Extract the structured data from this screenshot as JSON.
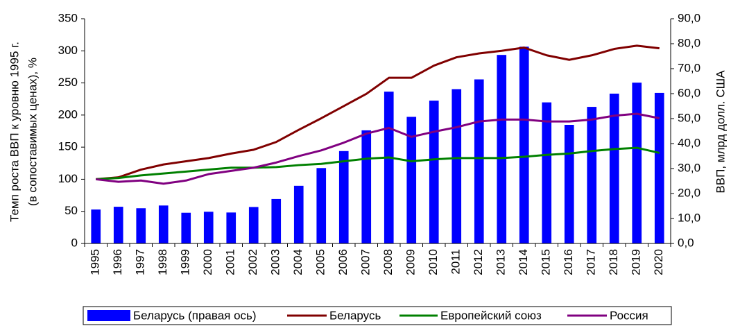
{
  "chart_data": {
    "type": "bar",
    "y_label": [
      "Темп роста ВВП к уровню 1995 г.",
      "(в сопоставимых ценах), %"
    ],
    "y2_label": "ВВП, млрд долл. США",
    "categories": [
      "1995",
      "1996",
      "1997",
      "1998",
      "1999",
      "2000",
      "2001",
      "2002",
      "2003",
      "2004",
      "2005",
      "2006",
      "2007",
      "2008",
      "2009",
      "2010",
      "2011",
      "2012",
      "2013",
      "2014",
      "2015",
      "2016",
      "2017",
      "2018",
      "2019",
      "2020"
    ],
    "series": [
      {
        "name": "Беларусь (правая ось)",
        "type": "bar",
        "axis": "y2",
        "color": "#0000ff",
        "values": [
          13.6,
          14.7,
          14.1,
          15.2,
          12.3,
          12.7,
          12.4,
          14.6,
          17.8,
          23.1,
          30.2,
          37.0,
          45.3,
          60.8,
          50.7,
          57.2,
          61.8,
          65.7,
          75.5,
          78.8,
          56.5,
          47.5,
          54.7,
          60.0,
          64.4,
          60.3
        ]
      },
      {
        "name": "Беларусь",
        "type": "line",
        "color": "#800000",
        "values": [
          100,
          103,
          115,
          123,
          128,
          133,
          140,
          146,
          158,
          177,
          195,
          214,
          233,
          258,
          258,
          277,
          290,
          296,
          300,
          305,
          293,
          286,
          293,
          303,
          308,
          304
        ]
      },
      {
        "name": "Европейский союз",
        "type": "line",
        "color": "#008000",
        "values": [
          100,
          102,
          106,
          109,
          112,
          115,
          118,
          118,
          119,
          122,
          124,
          128,
          132,
          134,
          128,
          131,
          133,
          133,
          133,
          135,
          138,
          140,
          144,
          147,
          149,
          141
        ]
      },
      {
        "name": "Россия",
        "type": "line",
        "color": "#800080",
        "values": [
          100,
          96,
          98,
          93,
          98,
          108,
          113,
          118,
          126,
          136,
          145,
          157,
          171,
          180,
          166,
          174,
          181,
          190,
          193,
          193,
          190,
          190,
          193,
          199,
          202,
          195
        ]
      }
    ],
    "ylim": [
      0,
      350
    ],
    "yticks": [
      0,
      50,
      100,
      150,
      200,
      250,
      300,
      350
    ],
    "y2lim": [
      0,
      90
    ],
    "y2ticks": [
      {
        "value": 0,
        "label": "0,0"
      },
      {
        "value": 10,
        "label": "10,0"
      },
      {
        "value": 20,
        "label": "20,0"
      },
      {
        "value": 30,
        "label": "30,0"
      },
      {
        "value": 40,
        "label": "40,0"
      },
      {
        "value": 50,
        "label": "50,0"
      },
      {
        "value": 60,
        "label": "60,0"
      },
      {
        "value": 70,
        "label": "70,0"
      },
      {
        "value": 80,
        "label": "80,0"
      },
      {
        "value": 90,
        "label": "90,0"
      }
    ],
    "legend": "bottom"
  }
}
